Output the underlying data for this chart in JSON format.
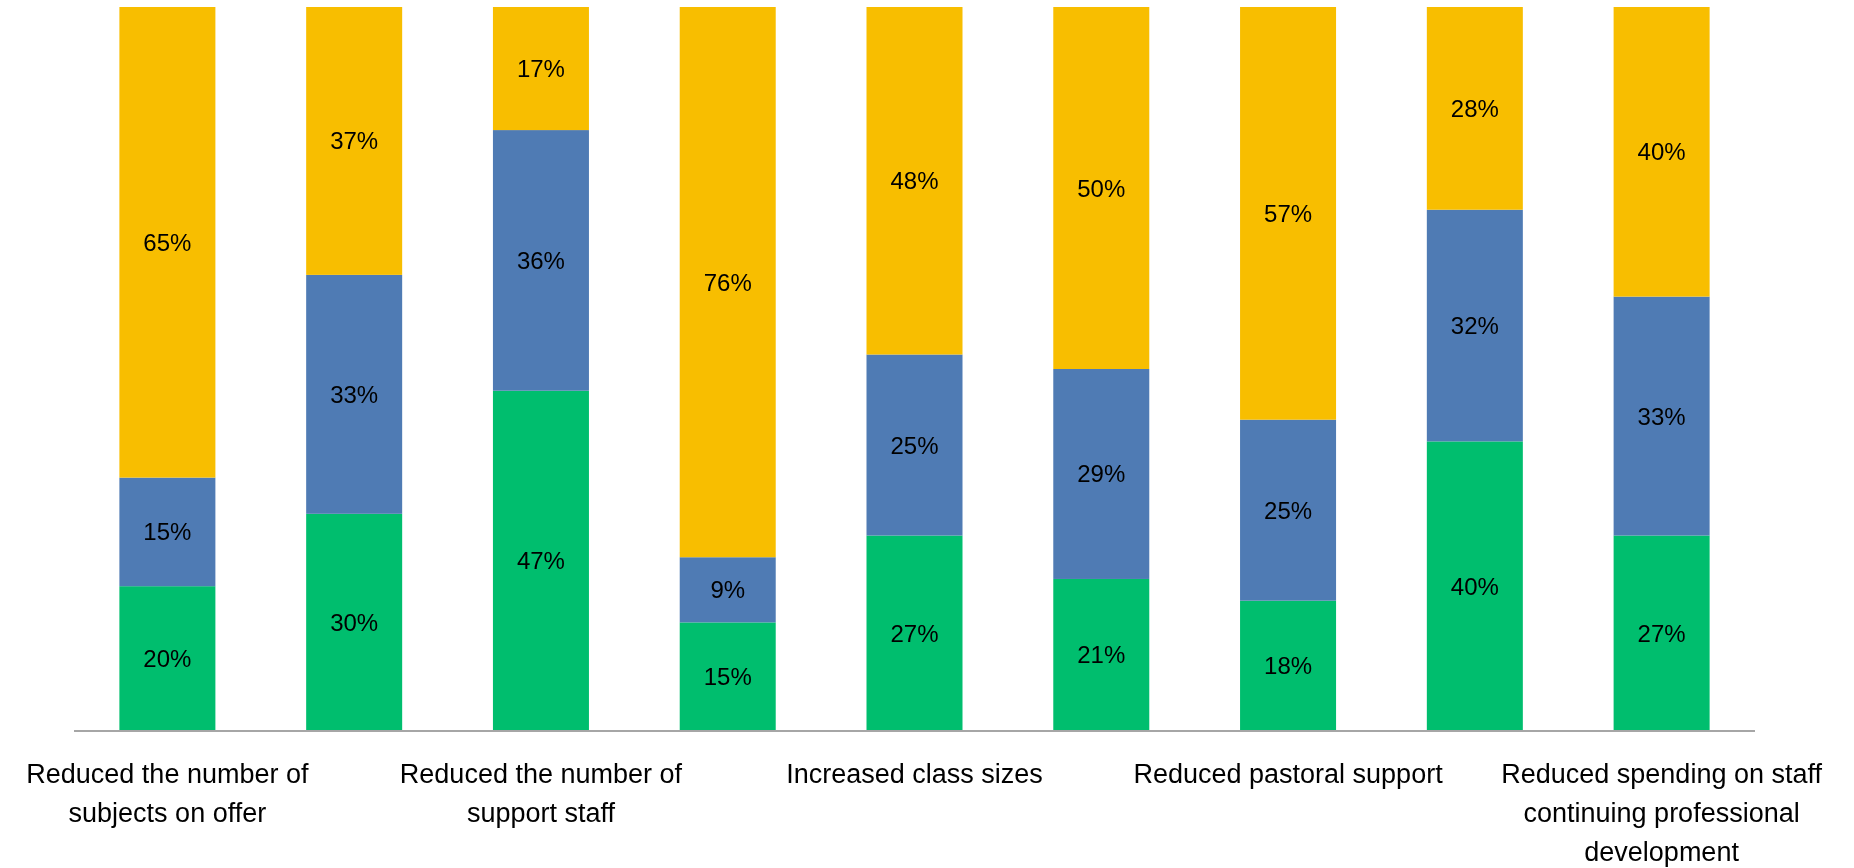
{
  "chart_data": {
    "type": "bar",
    "stacked": true,
    "categories": [
      "Reduced the number of subjects on offer",
      null,
      "Reduced the number of support staff",
      null,
      "Increased class sizes",
      null,
      "Reduced pastoral support",
      null,
      "Reduced spending on staff continuing professional development"
    ],
    "series": [
      {
        "color": "#00be6e",
        "values": [
          20,
          30,
          47,
          15,
          27,
          21,
          18,
          40,
          27
        ],
        "value_labels": [
          "20%",
          "30%",
          "47%",
          "15%",
          "27%",
          "21%",
          "18%",
          "40%",
          "27%"
        ]
      },
      {
        "color": "#4f7bb4",
        "values": [
          15,
          33,
          36,
          9,
          25,
          29,
          25,
          32,
          33
        ],
        "value_labels": [
          "15%",
          "33%",
          "36%",
          "9%",
          "25%",
          "29%",
          "25%",
          "32%",
          "33%"
        ]
      },
      {
        "color": "#f8be00",
        "values": [
          65,
          37,
          17,
          76,
          48,
          50,
          57,
          28,
          40
        ],
        "value_labels": [
          "65%",
          "37%",
          "17%",
          "76%",
          "48%",
          "50%",
          "57%",
          "28%",
          "40%"
        ]
      }
    ]
  }
}
